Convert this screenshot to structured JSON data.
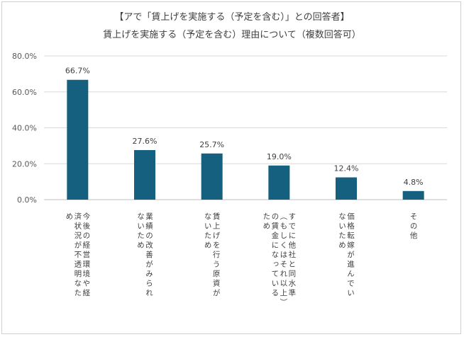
{
  "chart_data": {
    "type": "bar",
    "title": "【アで「賃上げを実施する（予定を含む）」との回答者】",
    "subtitle": "賃上げを実施する（予定を含む）理由について（複数回答可）",
    "xlabel": "",
    "ylabel": "",
    "ylim": [
      0,
      80
    ],
    "y_ticks": [
      "0.0%",
      "20.0%",
      "40.0%",
      "60.0%",
      "80.0%"
    ],
    "grid": true,
    "legend": "none",
    "bar_color": "#16607f",
    "categories": [
      [
        "今後の経営環境や経",
        "済状況が不透明なた",
        "め"
      ],
      [
        "業績の改善がみられ",
        "ないため"
      ],
      [
        "賃上げを行う原資が",
        "ないため"
      ],
      [
        "すでに他社と同水準",
        "（もしくはそれ以上）",
        "の賃金になっている",
        "ため"
      ],
      [
        "価格転嫁が進んでい",
        "ないため"
      ],
      [
        "その他"
      ]
    ],
    "values": [
      66.7,
      27.6,
      25.7,
      19.0,
      12.4,
      4.8
    ],
    "data_labels": [
      "66.7%",
      "27.6%",
      "25.7%",
      "19.0%",
      "12.4%",
      "4.8%"
    ]
  }
}
